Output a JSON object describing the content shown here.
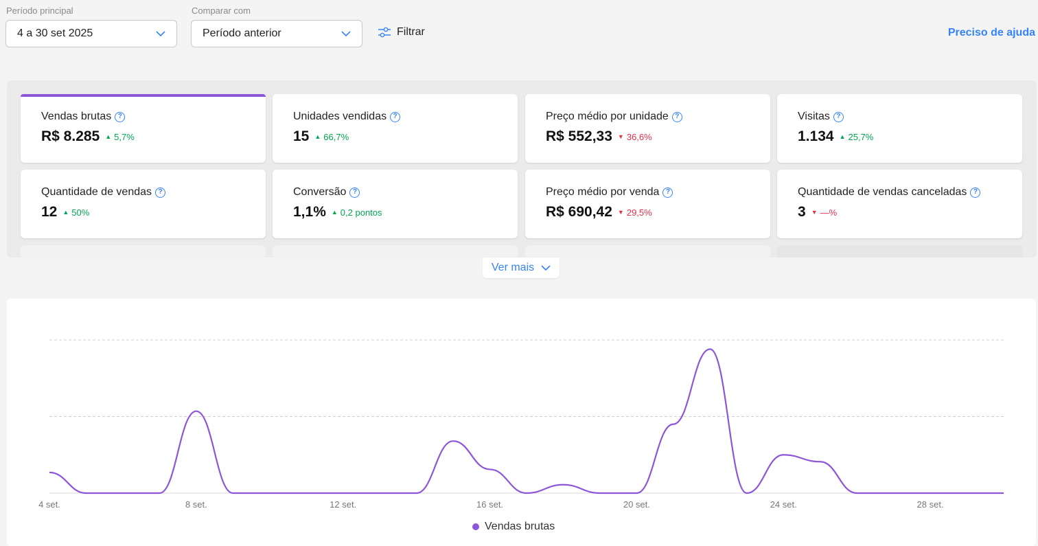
{
  "filters": {
    "periodo_label": "Período principal",
    "periodo_value": "4 a 30 set 2025",
    "comparar_label": "Comparar com",
    "comparar_value": "Período anterior",
    "filtrar_label": "Filtrar",
    "help_label": "Preciso de ajuda"
  },
  "metrics": [
    {
      "title": "Vendas brutas",
      "value": "R$ 8.285",
      "delta": "5,7%",
      "dir": "up"
    },
    {
      "title": "Unidades vendidas",
      "value": "15",
      "delta": "66,7%",
      "dir": "up"
    },
    {
      "title": "Preço médio por unidade",
      "value": "R$ 552,33",
      "delta": "36,6%",
      "dir": "down"
    },
    {
      "title": "Visitas",
      "value": "1.134",
      "delta": "25,7%",
      "dir": "up"
    },
    {
      "title": "Quantidade de vendas",
      "value": "12",
      "delta": "50%",
      "dir": "up"
    },
    {
      "title": "Conversão",
      "value": "1,1%",
      "delta": "0,2 pontos",
      "dir": "up"
    },
    {
      "title": "Preço médio por venda",
      "value": "R$ 690,42",
      "delta": "29,5%",
      "dir": "down"
    },
    {
      "title": "Quantidade de vendas canceladas",
      "value": "3",
      "delta": "—%",
      "dir": "down"
    }
  ],
  "ver_mais_label": "Ver mais",
  "colors": {
    "accent": "#8d55d8",
    "link": "#3483fa",
    "up": "#00a650",
    "down": "#e3304a"
  },
  "chart_data": {
    "type": "line",
    "x": [
      "4 set.",
      "5 set.",
      "6 set.",
      "7 set.",
      "8 set.",
      "9 set.",
      "10 set.",
      "11 set.",
      "12 set.",
      "13 set.",
      "14 set.",
      "15 set.",
      "16 set.",
      "17 set.",
      "18 set.",
      "19 set.",
      "20 set.",
      "21 set.",
      "22 set.",
      "23 set.",
      "24 set.",
      "25 set.",
      "26 set.",
      "27 set.",
      "28 set.",
      "29 set.",
      "30 set."
    ],
    "tick_labels": [
      "4 set.",
      "8 set.",
      "12 set.",
      "16 set.",
      "20 set.",
      "24 set.",
      "28 set."
    ],
    "series": [
      {
        "name": "Vendas brutas",
        "values": [
          0.27,
          0,
          0,
          0,
          1.07,
          0,
          0,
          0,
          0,
          0,
          0,
          0.68,
          0.31,
          0,
          0.11,
          0,
          0,
          0.9,
          1.88,
          0,
          0.5,
          0.41,
          0,
          0,
          0,
          0,
          0
        ]
      }
    ],
    "ylim": [
      0,
      2
    ],
    "grid": true,
    "legend": "bottom-center"
  }
}
